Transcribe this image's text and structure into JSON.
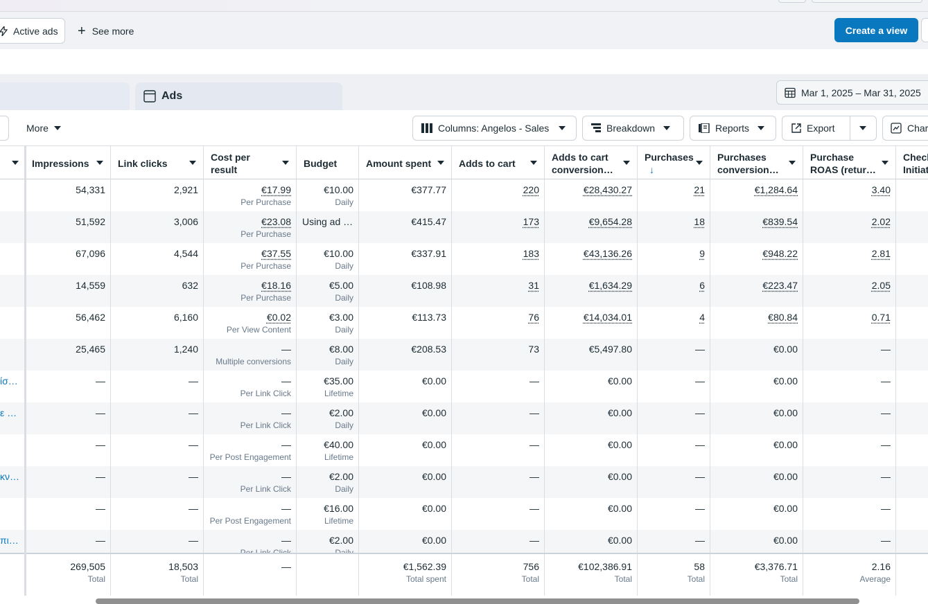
{
  "filter_bar": {
    "active_ads": "Active ads",
    "see_more": "See more",
    "create_view": "Create a view"
  },
  "tabs": {
    "ads": "Ads"
  },
  "date_range": "Mar 1, 2025 – Mar 31, 2025",
  "toolbar": {
    "more": "More",
    "columns": "Columns: Angelos - Sales",
    "breakdown": "Breakdown",
    "reports": "Reports",
    "export": "Export",
    "charts": "Charts"
  },
  "columns": [
    "Impressions",
    "Link clicks",
    "Cost per result",
    "Budget",
    "Amount spent",
    "Adds to cart",
    "Adds to cart conversion…",
    "Purchases",
    "Purchases conversion…",
    "Purchase ROAS (retur…",
    "Checkouts Initiated"
  ],
  "rows": [
    {
      "name": "",
      "impressions": "54,331",
      "link_clicks": "2,921",
      "cpr": "€17.99",
      "cpr_sub": "Per Purchase",
      "budget": "€10.00",
      "budget_sub": "Daily",
      "spent": "€377.77",
      "atc": "220",
      "atc_value": "€28,430.27",
      "purchases": "21",
      "purch_value": "€1,284.64",
      "roas": "3.40"
    },
    {
      "name": "",
      "impressions": "51,592",
      "link_clicks": "3,006",
      "cpr": "€23.08",
      "cpr_sub": "Per Purchase",
      "budget": "Using ad …",
      "budget_sub": "",
      "spent": "€415.47",
      "atc": "173",
      "atc_value": "€9,654.28",
      "purchases": "18",
      "purch_value": "€839.54",
      "roas": "2.02"
    },
    {
      "name": "",
      "impressions": "67,096",
      "link_clicks": "4,544",
      "cpr": "€37.55",
      "cpr_sub": "Per Purchase",
      "budget": "€10.00",
      "budget_sub": "Daily",
      "spent": "€337.91",
      "atc": "183",
      "atc_value": "€43,136.26",
      "purchases": "9",
      "purch_value": "€948.22",
      "roas": "2.81"
    },
    {
      "name": "",
      "impressions": "14,559",
      "link_clicks": "632",
      "cpr": "€18.16",
      "cpr_sub": "Per Purchase",
      "budget": "€5.00",
      "budget_sub": "Daily",
      "spent": "€108.98",
      "atc": "31",
      "atc_value": "€1,634.29",
      "purchases": "6",
      "purch_value": "€223.47",
      "roas": "2.05"
    },
    {
      "name": "",
      "impressions": "56,462",
      "link_clicks": "6,160",
      "cpr": "€0.02",
      "cpr_sub": "Per View Content",
      "budget": "€3.00",
      "budget_sub": "Daily",
      "spent": "€113.73",
      "atc": "76",
      "atc_value": "€14,034.01",
      "purchases": "4",
      "purch_value": "€80.84",
      "roas": "0.71"
    },
    {
      "name": "",
      "impressions": "25,465",
      "link_clicks": "1,240",
      "cpr": "—",
      "cpr_sub": "Multiple conversions",
      "budget": "€8.00",
      "budget_sub": "Daily",
      "spent": "€208.53",
      "atc": "73",
      "atc_value": "€5,497.80",
      "purchases": "—",
      "purch_value": "€0.00",
      "roas": "—"
    },
    {
      "name": "ίσ…",
      "impressions": "—",
      "link_clicks": "—",
      "cpr": "—",
      "cpr_sub": "Per Link Click",
      "budget": "€35.00",
      "budget_sub": "Lifetime",
      "spent": "€0.00",
      "atc": "—",
      "atc_value": "€0.00",
      "purchases": "—",
      "purch_value": "€0.00",
      "roas": "—"
    },
    {
      "name": "ε …",
      "impressions": "—",
      "link_clicks": "—",
      "cpr": "—",
      "cpr_sub": "Per Link Click",
      "budget": "€2.00",
      "budget_sub": "Daily",
      "spent": "€0.00",
      "atc": "—",
      "atc_value": "€0.00",
      "purchases": "—",
      "purch_value": "€0.00",
      "roas": "—"
    },
    {
      "name": "",
      "impressions": "—",
      "link_clicks": "—",
      "cpr": "—",
      "cpr_sub": "Per Post Engagement",
      "budget": "€40.00",
      "budget_sub": "Lifetime",
      "spent": "€0.00",
      "atc": "—",
      "atc_value": "€0.00",
      "purchases": "—",
      "purch_value": "€0.00",
      "roas": "—"
    },
    {
      "name": "κν…",
      "impressions": "—",
      "link_clicks": "—",
      "cpr": "—",
      "cpr_sub": "Per Link Click",
      "budget": "€2.00",
      "budget_sub": "Daily",
      "spent": "€0.00",
      "atc": "—",
      "atc_value": "€0.00",
      "purchases": "—",
      "purch_value": "€0.00",
      "roas": "—"
    },
    {
      "name": "",
      "impressions": "—",
      "link_clicks": "—",
      "cpr": "—",
      "cpr_sub": "Per Post Engagement",
      "budget": "€16.00",
      "budget_sub": "Lifetime",
      "spent": "€0.00",
      "atc": "—",
      "atc_value": "€0.00",
      "purchases": "—",
      "purch_value": "€0.00",
      "roas": "—"
    },
    {
      "name": "πι…",
      "impressions": "—",
      "link_clicks": "—",
      "cpr": "—",
      "cpr_sub": "Per Link Click",
      "budget": "€2.00",
      "budget_sub": "Daily",
      "spent": "€0.00",
      "atc": "—",
      "atc_value": "€0.00",
      "purchases": "—",
      "purch_value": "€0.00",
      "roas": "—"
    }
  ],
  "totals": {
    "impressions": "269,505",
    "impressions_sub": "Total",
    "link_clicks": "18,503",
    "link_clicks_sub": "Total",
    "cpr": "—",
    "spent": "€1,562.39",
    "spent_sub": "Total spent",
    "atc": "756",
    "atc_sub": "Total",
    "atc_value": "€102,386.91",
    "atc_value_sub": "Total",
    "purchases": "58",
    "purchases_sub": "Total",
    "purch_value": "€3,376.71",
    "purch_value_sub": "Total",
    "roas": "2.16",
    "roas_sub": "Average"
  }
}
